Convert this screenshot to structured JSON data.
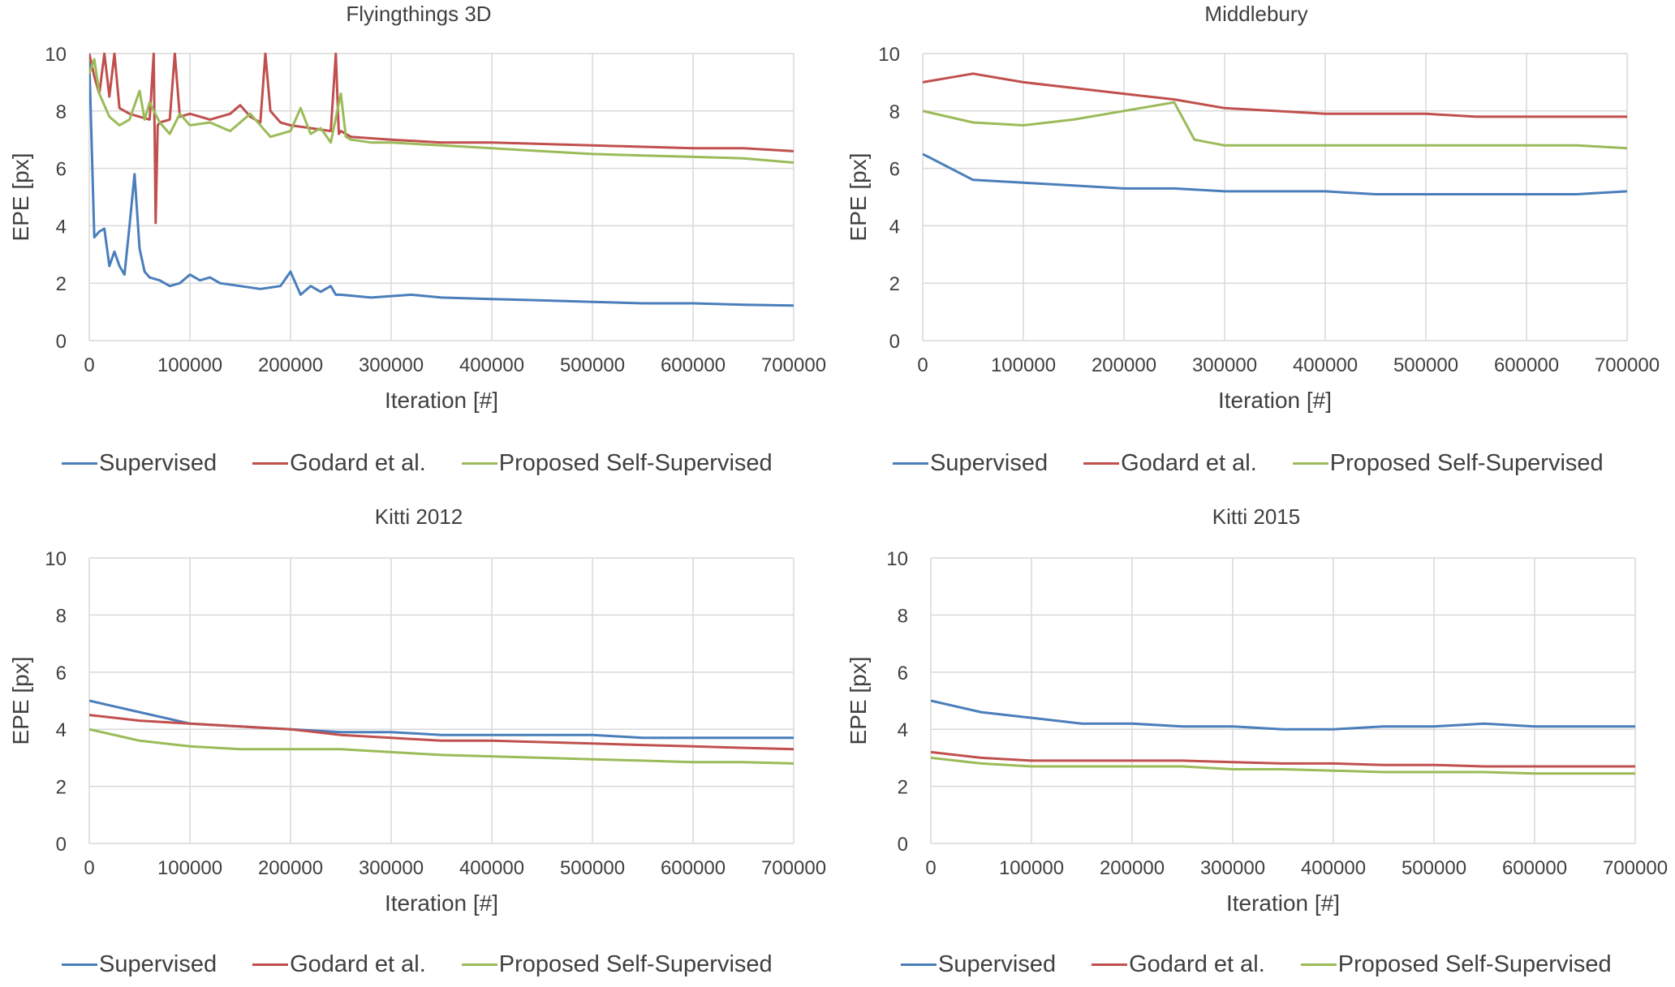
{
  "colors": {
    "supervised": "#4a7ebb",
    "godard": "#c0504d",
    "proposed": "#9bbb59",
    "grid": "#d9d9d9",
    "text": "#404040"
  },
  "chart_data": [
    {
      "type": "line",
      "title": "Flyingthings 3D",
      "xlabel": "Iteration [#]",
      "ylabel": "EPE [px]",
      "xlim": [
        0,
        700000
      ],
      "ylim": [
        0,
        10
      ],
      "xticks": [
        "0",
        "100000",
        "200000",
        "300000",
        "400000",
        "500000",
        "600000",
        "700000"
      ],
      "yticks": [
        "0",
        "2",
        "4",
        "6",
        "8",
        "10"
      ],
      "legend": [
        "Supervised",
        "Godard et al.",
        "Proposed Self-Supervised"
      ],
      "series": [
        {
          "name": "Supervised",
          "color": "#4a7ebb",
          "x": [
            0,
            5000,
            10000,
            15000,
            20000,
            25000,
            30000,
            35000,
            40000,
            45000,
            50000,
            55000,
            60000,
            70000,
            80000,
            90000,
            100000,
            110000,
            120000,
            130000,
            150000,
            170000,
            190000,
            200000,
            210000,
            220000,
            230000,
            240000,
            245000,
            250000,
            280000,
            320000,
            350000,
            400000,
            450000,
            500000,
            550000,
            600000,
            650000,
            700000
          ],
          "y": [
            9.8,
            3.6,
            3.8,
            3.9,
            2.6,
            3.1,
            2.6,
            2.3,
            4.0,
            5.8,
            3.2,
            2.4,
            2.2,
            2.1,
            1.9,
            2.0,
            2.3,
            2.1,
            2.2,
            2.0,
            1.9,
            1.8,
            1.9,
            2.4,
            1.6,
            1.9,
            1.7,
            1.9,
            1.6,
            1.6,
            1.5,
            1.6,
            1.5,
            1.45,
            1.4,
            1.35,
            1.3,
            1.3,
            1.25,
            1.22
          ]
        },
        {
          "name": "Godard et al.",
          "color": "#c0504d",
          "x": [
            0,
            5000,
            10000,
            15000,
            20000,
            25000,
            30000,
            40000,
            50000,
            60000,
            64000,
            66000,
            68000,
            70000,
            80000,
            85000,
            90000,
            100000,
            120000,
            140000,
            150000,
            160000,
            170000,
            175000,
            180000,
            190000,
            200000,
            220000,
            240000,
            245000,
            248000,
            250000,
            260000,
            300000,
            350000,
            400000,
            450000,
            500000,
            550000,
            600000,
            650000,
            700000
          ],
          "y": [
            10,
            9.2,
            8.6,
            10,
            8.5,
            10,
            8.1,
            7.9,
            7.8,
            7.7,
            10,
            4.1,
            7.5,
            7.6,
            7.7,
            10,
            7.8,
            7.9,
            7.7,
            7.9,
            8.2,
            7.8,
            7.6,
            10,
            8.0,
            7.6,
            7.5,
            7.4,
            7.3,
            10,
            7.2,
            7.3,
            7.1,
            7.0,
            6.9,
            6.9,
            6.85,
            6.8,
            6.75,
            6.7,
            6.7,
            6.6
          ]
        },
        {
          "name": "Proposed Self-Supervised",
          "color": "#9bbb59",
          "x": [
            0,
            5000,
            10000,
            20000,
            30000,
            40000,
            50000,
            55000,
            60000,
            70000,
            80000,
            90000,
            100000,
            120000,
            140000,
            160000,
            180000,
            200000,
            210000,
            220000,
            230000,
            240000,
            250000,
            255000,
            260000,
            280000,
            300000,
            350000,
            400000,
            450000,
            500000,
            550000,
            600000,
            650000,
            700000
          ],
          "y": [
            9.3,
            9.8,
            8.6,
            7.8,
            7.5,
            7.7,
            8.7,
            7.7,
            8.3,
            7.6,
            7.2,
            7.9,
            7.5,
            7.6,
            7.3,
            7.9,
            7.1,
            7.3,
            8.1,
            7.2,
            7.4,
            6.9,
            8.6,
            7.1,
            7.0,
            6.9,
            6.9,
            6.8,
            6.7,
            6.6,
            6.5,
            6.45,
            6.4,
            6.35,
            6.2
          ]
        }
      ]
    },
    {
      "type": "line",
      "title": "Middlebury",
      "xlabel": "Iteration [#]",
      "ylabel": "EPE [px]",
      "xlim": [
        0,
        700000
      ],
      "ylim": [
        0,
        10
      ],
      "xticks": [
        "0",
        "100000",
        "200000",
        "300000",
        "400000",
        "500000",
        "600000",
        "700000"
      ],
      "yticks": [
        "0",
        "2",
        "4",
        "6",
        "8",
        "10"
      ],
      "legend": [
        "Supervised",
        "Godard et al.",
        "Proposed Self-Supervised"
      ],
      "series": [
        {
          "name": "Supervised",
          "color": "#4a7ebb",
          "x": [
            0,
            50000,
            100000,
            150000,
            200000,
            250000,
            300000,
            350000,
            400000,
            450000,
            500000,
            550000,
            600000,
            650000,
            700000
          ],
          "y": [
            6.5,
            5.6,
            5.5,
            5.4,
            5.3,
            5.3,
            5.2,
            5.2,
            5.2,
            5.1,
            5.1,
            5.1,
            5.1,
            5.1,
            5.2
          ]
        },
        {
          "name": "Godard et al.",
          "color": "#c0504d",
          "x": [
            0,
            50000,
            100000,
            150000,
            200000,
            250000,
            300000,
            350000,
            400000,
            450000,
            500000,
            550000,
            600000,
            650000,
            700000
          ],
          "y": [
            9.0,
            9.3,
            9.0,
            8.8,
            8.6,
            8.4,
            8.1,
            8.0,
            7.9,
            7.9,
            7.9,
            7.8,
            7.8,
            7.8,
            7.8
          ]
        },
        {
          "name": "Proposed Self-Supervised",
          "color": "#9bbb59",
          "x": [
            0,
            50000,
            100000,
            150000,
            200000,
            250000,
            270000,
            300000,
            350000,
            400000,
            450000,
            500000,
            550000,
            600000,
            650000,
            700000
          ],
          "y": [
            8.0,
            7.6,
            7.5,
            7.7,
            8.0,
            8.3,
            7.0,
            6.8,
            6.8,
            6.8,
            6.8,
            6.8,
            6.8,
            6.8,
            6.8,
            6.7
          ]
        }
      ]
    },
    {
      "type": "line",
      "title": "Kitti 2012",
      "xlabel": "Iteration [#]",
      "ylabel": "EPE [px]",
      "xlim": [
        0,
        700000
      ],
      "ylim": [
        0,
        10
      ],
      "xticks": [
        "0",
        "100000",
        "200000",
        "300000",
        "400000",
        "500000",
        "600000",
        "700000"
      ],
      "yticks": [
        "0",
        "2",
        "4",
        "6",
        "8",
        "10"
      ],
      "legend": [
        "Supervised",
        "Godard et al.",
        "Proposed Self-Supervised"
      ],
      "series": [
        {
          "name": "Supervised",
          "color": "#4a7ebb",
          "x": [
            0,
            50000,
            100000,
            150000,
            200000,
            250000,
            300000,
            350000,
            400000,
            450000,
            500000,
            550000,
            600000,
            650000,
            700000
          ],
          "y": [
            5.0,
            4.6,
            4.2,
            4.1,
            4.0,
            3.9,
            3.9,
            3.8,
            3.8,
            3.8,
            3.8,
            3.7,
            3.7,
            3.7,
            3.7
          ]
        },
        {
          "name": "Godard et al.",
          "color": "#c0504d",
          "x": [
            0,
            50000,
            100000,
            150000,
            200000,
            250000,
            300000,
            350000,
            400000,
            450000,
            500000,
            550000,
            600000,
            650000,
            700000
          ],
          "y": [
            4.5,
            4.3,
            4.2,
            4.1,
            4.0,
            3.8,
            3.7,
            3.6,
            3.6,
            3.55,
            3.5,
            3.45,
            3.4,
            3.35,
            3.3
          ]
        },
        {
          "name": "Proposed Self-Supervised",
          "color": "#9bbb59",
          "x": [
            0,
            50000,
            100000,
            150000,
            200000,
            250000,
            300000,
            350000,
            400000,
            450000,
            500000,
            550000,
            600000,
            650000,
            700000
          ],
          "y": [
            4.0,
            3.6,
            3.4,
            3.3,
            3.3,
            3.3,
            3.2,
            3.1,
            3.05,
            3.0,
            2.95,
            2.9,
            2.85,
            2.85,
            2.8
          ]
        }
      ]
    },
    {
      "type": "line",
      "title": "Kitti 2015",
      "xlabel": "Iteration [#]",
      "ylabel": "EPE [px]",
      "xlim": [
        0,
        700000
      ],
      "ylim": [
        0,
        10
      ],
      "xticks": [
        "0",
        "100000",
        "200000",
        "300000",
        "400000",
        "500000",
        "600000",
        "700000"
      ],
      "yticks": [
        "0",
        "2",
        "4",
        "6",
        "8",
        "10"
      ],
      "legend": [
        "Supervised",
        "Godard et al.",
        "Proposed Self-Supervised"
      ],
      "series": [
        {
          "name": "Supervised",
          "color": "#4a7ebb",
          "x": [
            0,
            50000,
            100000,
            150000,
            200000,
            250000,
            300000,
            350000,
            400000,
            450000,
            500000,
            550000,
            600000,
            650000,
            700000
          ],
          "y": [
            5.0,
            4.6,
            4.4,
            4.2,
            4.2,
            4.1,
            4.1,
            4.0,
            4.0,
            4.1,
            4.1,
            4.2,
            4.1,
            4.1,
            4.1
          ]
        },
        {
          "name": "Godard et al.",
          "color": "#c0504d",
          "x": [
            0,
            50000,
            100000,
            150000,
            200000,
            250000,
            300000,
            350000,
            400000,
            450000,
            500000,
            550000,
            600000,
            650000,
            700000
          ],
          "y": [
            3.2,
            3.0,
            2.9,
            2.9,
            2.9,
            2.9,
            2.85,
            2.8,
            2.8,
            2.75,
            2.75,
            2.7,
            2.7,
            2.7,
            2.7
          ]
        },
        {
          "name": "Proposed Self-Supervised",
          "color": "#9bbb59",
          "x": [
            0,
            50000,
            100000,
            150000,
            200000,
            250000,
            300000,
            350000,
            400000,
            450000,
            500000,
            550000,
            600000,
            650000,
            700000
          ],
          "y": [
            3.0,
            2.8,
            2.7,
            2.7,
            2.7,
            2.7,
            2.6,
            2.6,
            2.55,
            2.5,
            2.5,
            2.5,
            2.45,
            2.45,
            2.45
          ]
        }
      ]
    }
  ]
}
